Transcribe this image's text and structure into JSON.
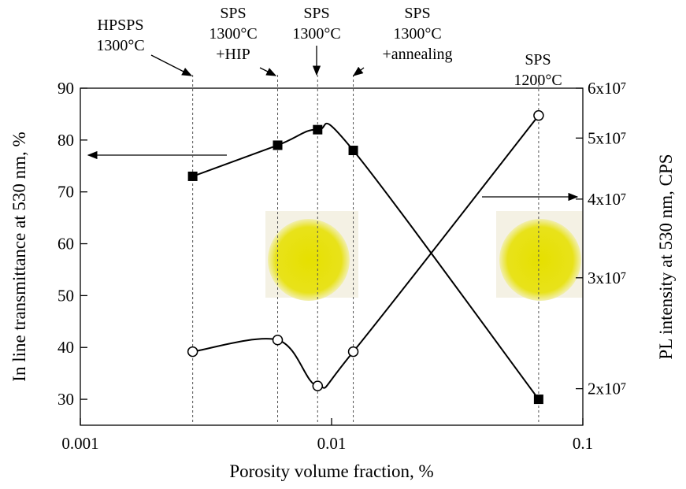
{
  "chart_data": {
    "type": "line",
    "xlabel": "Porosity volume fraction, %",
    "ylabel": "In line transmittance at 530 nm, %",
    "y2label": "PL intensity at 530 nm, CPS",
    "x": [
      0.0028,
      0.0061,
      0.0088,
      0.0122,
      0.0667
    ],
    "series": [
      {
        "marker": "square",
        "color": "#000000",
        "axis": "y",
        "values": [
          73,
          79,
          82,
          78,
          30
        ]
      },
      {
        "marker": "circle",
        "color": "#000000",
        "axis": "y2",
        "values": [
          22900000,
          23900000,
          20200000,
          22900000,
          54300000
        ]
      }
    ],
    "xlim": [
      0.001,
      0.1
    ],
    "xscale": "log",
    "xticks": [
      0.001,
      0.01,
      0.1
    ],
    "ylim": [
      25,
      90
    ],
    "yticks": [
      30,
      40,
      50,
      60,
      70,
      80,
      90
    ],
    "y2lim": [
      17500000,
      60000000
    ],
    "y2scale": "log",
    "y2ticks": [
      {
        "value": 20000000,
        "label": "2x10⁷"
      },
      {
        "value": 30000000,
        "label": "3x10⁷"
      },
      {
        "value": 40000000,
        "label": "4x10⁷"
      },
      {
        "value": 50000000,
        "label": "5x10⁷"
      },
      {
        "value": 60000000,
        "label": "6x10⁷"
      }
    ],
    "annotations": [
      [
        "HPSPS",
        "1300°C"
      ],
      [
        "SPS",
        "1300°C",
        "+HIP"
      ],
      [
        "SPS",
        "1300°C"
      ],
      [
        "SPS",
        "1300°C",
        "+annealing"
      ],
      [
        "SPS",
        "1200°C"
      ]
    ]
  }
}
